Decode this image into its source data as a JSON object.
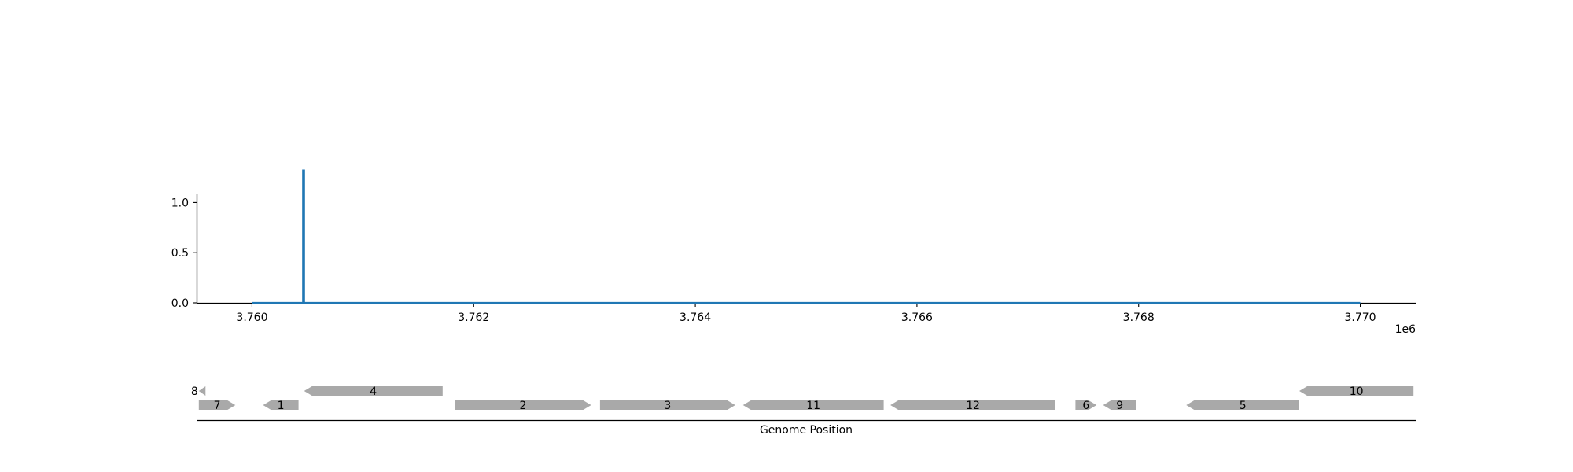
{
  "chart_data": [
    {
      "type": "line",
      "title": "",
      "xlabel": "",
      "ylabel": "",
      "x_offset_label": "1e6",
      "xlim": [
        3759500,
        3770500
      ],
      "ylim": [
        0,
        1.45
      ],
      "xticks": [
        3760000,
        3762000,
        3764000,
        3766000,
        3768000,
        3770000
      ],
      "xtick_labels": [
        "3.760",
        "3.762",
        "3.764",
        "3.766",
        "3.768",
        "3.770"
      ],
      "yticks": [
        0,
        0.5,
        1.0
      ],
      "ytick_labels": [
        "0.0",
        "0.5",
        "1.0"
      ],
      "grid": false,
      "color": "#1f77b4",
      "series": [
        {
          "x": [
            3760000,
            3760460,
            3760460,
            3760470,
            3760470,
            3770000
          ],
          "y": [
            0,
            0,
            1.32,
            1.32,
            0,
            0
          ]
        }
      ]
    },
    {
      "type": "gene_track",
      "xlabel": "Genome Position",
      "xlim": [
        3759500,
        3770500
      ],
      "color": "#a9a9a9",
      "genes": [
        {
          "label": "8",
          "start": 3759520,
          "end": 3759580,
          "strand": "-",
          "row": 1
        },
        {
          "label": "7",
          "start": 3759520,
          "end": 3759850,
          "strand": "+",
          "row": 0
        },
        {
          "label": "1",
          "start": 3760100,
          "end": 3760420,
          "strand": "-",
          "row": 0
        },
        {
          "label": "4",
          "start": 3760470,
          "end": 3761720,
          "strand": "-",
          "row": 1
        },
        {
          "label": "2",
          "start": 3761830,
          "end": 3763060,
          "strand": "+",
          "row": 0
        },
        {
          "label": "3",
          "start": 3763140,
          "end": 3764360,
          "strand": "+",
          "row": 0
        },
        {
          "label": "11",
          "start": 3764430,
          "end": 3765700,
          "strand": "-",
          "row": 0
        },
        {
          "label": "12",
          "start": 3765760,
          "end": 3767250,
          "strand": "-",
          "row": 0
        },
        {
          "label": "6",
          "start": 3767430,
          "end": 3767620,
          "strand": "+",
          "row": 0
        },
        {
          "label": "9",
          "start": 3767680,
          "end": 3767980,
          "strand": "-",
          "row": 0
        },
        {
          "label": "5",
          "start": 3768430,
          "end": 3769450,
          "strand": "-",
          "row": 0
        },
        {
          "label": "10",
          "start": 3769450,
          "end": 3770480,
          "strand": "-",
          "row": 1
        }
      ]
    }
  ]
}
